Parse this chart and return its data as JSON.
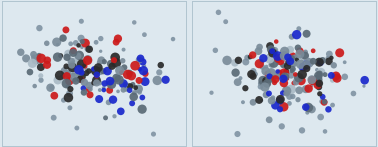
{
  "bg_color": "#dde8ef",
  "panel_bg": "#dde8ef",
  "border_color": "#b0c4d0",
  "seed1": 7,
  "seed2": 13,
  "colors": {
    "gray": "#7a8c9a",
    "mid_gray": "#5a6a76",
    "dark_gray": "#2a2a2a",
    "red": "#cc1a1a",
    "blue": "#1a28cc",
    "light_gray": "#9aaab6",
    "pale_gray": "#aabbc6",
    "counterion": "#7a8e9e"
  },
  "figsize": [
    3.78,
    1.47
  ],
  "dpi": 100
}
